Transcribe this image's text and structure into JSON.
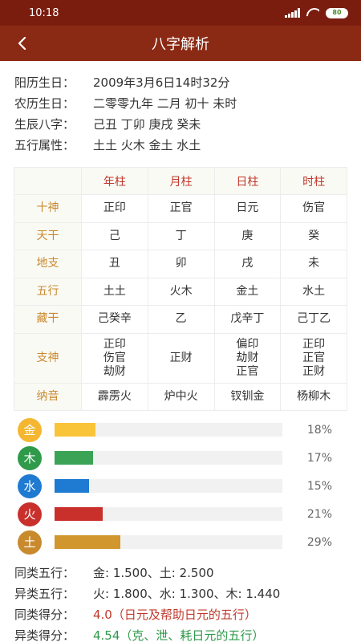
{
  "status_bar": {
    "time": "10:18",
    "battery": "80"
  },
  "app_bar": {
    "title": "八字解析"
  },
  "info": [
    {
      "label": "阳历生日：",
      "value": "2009年3月6日14时32分"
    },
    {
      "label": "农历生日：",
      "value": "二零零九年 二月 初十 未时"
    },
    {
      "label": "生辰八字：",
      "value": "己丑 丁卯 庚戌 癸未"
    },
    {
      "label": "五行属性：",
      "value": "土土 火木 金土 水土"
    }
  ],
  "table": {
    "columns": [
      "年柱",
      "月柱",
      "日柱",
      "时柱"
    ],
    "rows": [
      {
        "head": "十神",
        "cells": [
          [
            "正印"
          ],
          [
            "正官"
          ],
          [
            "日元"
          ],
          [
            "伤官"
          ]
        ]
      },
      {
        "head": "天干",
        "cells": [
          [
            "己"
          ],
          [
            "丁"
          ],
          [
            "庚"
          ],
          [
            "癸"
          ]
        ]
      },
      {
        "head": "地支",
        "cells": [
          [
            "丑"
          ],
          [
            "卯"
          ],
          [
            "戌"
          ],
          [
            "未"
          ]
        ]
      },
      {
        "head": "五行",
        "cells": [
          [
            "土土"
          ],
          [
            "火木"
          ],
          [
            "金土"
          ],
          [
            "水土"
          ]
        ]
      },
      {
        "head": "藏干",
        "cells": [
          [
            "己癸辛"
          ],
          [
            "乙"
          ],
          [
            "戊辛丁"
          ],
          [
            "己丁乙"
          ]
        ]
      },
      {
        "head": "支神",
        "cells": [
          [
            "正印",
            "伤官",
            "劫财"
          ],
          [
            "正财"
          ],
          [
            "偏印",
            "劫财",
            "正官"
          ],
          [
            "正印",
            "正官",
            "正财"
          ]
        ]
      },
      {
        "head": "纳音",
        "cells": [
          [
            "霹雳火"
          ],
          [
            "炉中火"
          ],
          [
            "钗钏金"
          ],
          [
            "杨柳木"
          ]
        ]
      }
    ]
  },
  "wuxing": [
    {
      "name": "金",
      "percent": 18,
      "label": "18%",
      "color": "#f5b731",
      "bar_color": "#f9c43a"
    },
    {
      "name": "木",
      "percent": 17,
      "label": "17%",
      "color": "#2e9a4a",
      "bar_color": "#3aa356"
    },
    {
      "name": "水",
      "percent": 15,
      "label": "15%",
      "color": "#1f7ad1",
      "bar_color": "#1f7ad1"
    },
    {
      "name": "火",
      "percent": 21,
      "label": "21%",
      "color": "#c9302c",
      "bar_color": "#c9302c"
    },
    {
      "name": "土",
      "percent": 29,
      "label": "29%",
      "color": "#c98a2e",
      "bar_color": "#d2962e"
    }
  ],
  "summary": [
    {
      "label": "同类五行：",
      "value": "金: 1.500、土: 2.500",
      "style": "plain"
    },
    {
      "label": "异类五行：",
      "value": "火: 1.800、水: 1.300、木: 1.440",
      "style": "plain"
    },
    {
      "label": "同类得分：",
      "value": "4.0（日元及帮助日元的五行）",
      "style": "red"
    },
    {
      "label": "异类得分：",
      "value": "4.54（克、泄、耗日元的五行）",
      "style": "green"
    }
  ]
}
